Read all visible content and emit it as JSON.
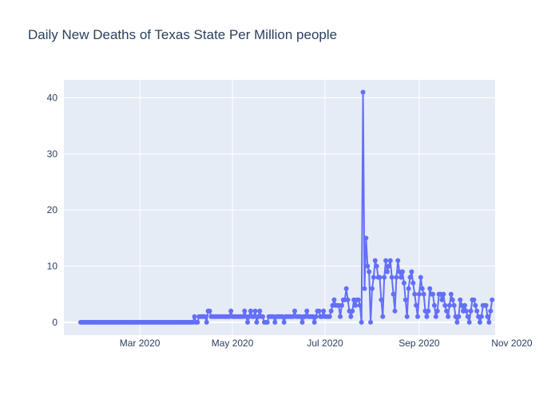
{
  "chart_data": {
    "type": "line",
    "mode": "lines+markers",
    "title": "Daily New Deaths of Texas State Per Million people",
    "xlabel": "",
    "ylabel": "",
    "x_range": [
      "2020-01-11",
      "2020-10-21"
    ],
    "ylim": [
      -2.3,
      43.2
    ],
    "yticks": [
      0,
      10,
      20,
      30,
      40
    ],
    "xticks": [
      {
        "date": "2020-03-01",
        "label": "Mar 2020"
      },
      {
        "date": "2020-05-01",
        "label": "May 2020"
      },
      {
        "date": "2020-07-01",
        "label": "Jul 2020"
      },
      {
        "date": "2020-09-01",
        "label": "Sep 2020"
      },
      {
        "date": "2020-11-01",
        "label": "Nov 2020"
      }
    ],
    "grid": true,
    "plot_background": "#e5ecf6",
    "series": [
      {
        "color": "#636efa",
        "start_date": "2020-01-22",
        "values": [
          0,
          0,
          0,
          0,
          0,
          0,
          0,
          0,
          0,
          0,
          0,
          0,
          0,
          0,
          0,
          0,
          0,
          0,
          0,
          0,
          0,
          0,
          0,
          0,
          0,
          0,
          0,
          0,
          0,
          0,
          0,
          0,
          0,
          0,
          0,
          0,
          0,
          0,
          0,
          0,
          0,
          0,
          0,
          0,
          0,
          0,
          0,
          0,
          0,
          0,
          0,
          0,
          0,
          0,
          0,
          0,
          0,
          0,
          0,
          0,
          0,
          0,
          0,
          0,
          0,
          0,
          0,
          0,
          0,
          0,
          0,
          0,
          0,
          0,
          0,
          1,
          0,
          0,
          1,
          1,
          1,
          1,
          1,
          0,
          2,
          2,
          1,
          1,
          1,
          1,
          1,
          1,
          1,
          1,
          1,
          1,
          1,
          1,
          1,
          2,
          1,
          1,
          1,
          1,
          1,
          1,
          1,
          1,
          2,
          1,
          0,
          1,
          2,
          1,
          1,
          2,
          0,
          1,
          2,
          1,
          1,
          0,
          0,
          0,
          1,
          1,
          1,
          1,
          0,
          1,
          1,
          1,
          1,
          1,
          0,
          1,
          1,
          1,
          1,
          1,
          1,
          2,
          1,
          1,
          1,
          1,
          0,
          1,
          1,
          2,
          1,
          1,
          1,
          1,
          0,
          1,
          2,
          2,
          1,
          1,
          2,
          1,
          1,
          1,
          1,
          2,
          3,
          4,
          3,
          3,
          3,
          1,
          3,
          4,
          4,
          6,
          4,
          2,
          1,
          2,
          4,
          3,
          4,
          4,
          3,
          0,
          41,
          6,
          15,
          10,
          9,
          0,
          6,
          8,
          11,
          10,
          8,
          8,
          4,
          1,
          8,
          11,
          9,
          10,
          11,
          8,
          5,
          2,
          8,
          11,
          9,
          8,
          9,
          7,
          4,
          1,
          6,
          8,
          9,
          7,
          5,
          3,
          1,
          5,
          8,
          6,
          5,
          2,
          1,
          2,
          6,
          5,
          5,
          3,
          1,
          2,
          5,
          5,
          4,
          5,
          3,
          2,
          1,
          3,
          5,
          4,
          3,
          1,
          0,
          1,
          4,
          3,
          2,
          3,
          2,
          1,
          0,
          2,
          4,
          4,
          3,
          2,
          1,
          0,
          1,
          3,
          3,
          3,
          1,
          0,
          2,
          4
        ]
      }
    ]
  }
}
